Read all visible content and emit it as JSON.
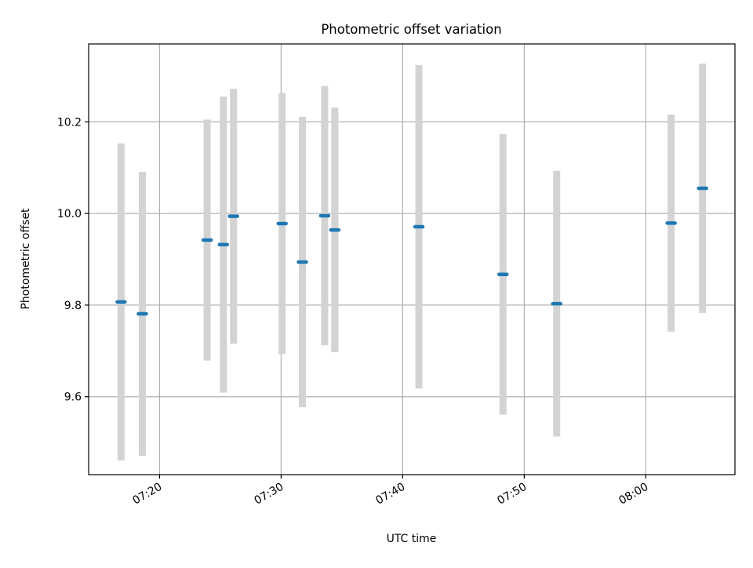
{
  "chart_data": {
    "type": "scatter",
    "title": "Photometric offset variation",
    "xlabel": "UTC time",
    "ylabel": "Photometric offset",
    "x_axis_kind": "time",
    "xlim": [
      "07:14:10",
      "08:07:20"
    ],
    "ylim": [
      9.43,
      10.37
    ],
    "grid": true,
    "x_ticks": [
      "07:20",
      "07:30",
      "07:40",
      "07:50",
      "08:00"
    ],
    "y_ticks": [
      "9.6",
      "9.8",
      "10.0",
      "10.2"
    ],
    "series": [
      {
        "marker_color": "#1f77b4",
        "errorbar_color": "#d3d3d3",
        "points": [
          {
            "x": "07:16:50",
            "y": 9.807,
            "err": 0.346
          },
          {
            "x": "07:18:35",
            "y": 9.781,
            "err": 0.31
          },
          {
            "x": "07:23:55",
            "y": 9.942,
            "err": 0.263
          },
          {
            "x": "07:25:15",
            "y": 9.932,
            "err": 0.323
          },
          {
            "x": "07:26:05",
            "y": 9.994,
            "err": 0.278
          },
          {
            "x": "07:30:05",
            "y": 9.978,
            "err": 0.285
          },
          {
            "x": "07:31:45",
            "y": 9.894,
            "err": 0.317
          },
          {
            "x": "07:33:35",
            "y": 9.995,
            "err": 0.283
          },
          {
            "x": "07:34:25",
            "y": 9.964,
            "err": 0.267
          },
          {
            "x": "07:41:20",
            "y": 9.971,
            "err": 0.353
          },
          {
            "x": "07:48:15",
            "y": 9.867,
            "err": 0.306
          },
          {
            "x": "07:52:40",
            "y": 9.803,
            "err": 0.29
          },
          {
            "x": "08:02:05",
            "y": 9.979,
            "err": 0.237
          },
          {
            "x": "08:04:40",
            "y": 10.055,
            "err": 0.272
          }
        ]
      }
    ]
  }
}
